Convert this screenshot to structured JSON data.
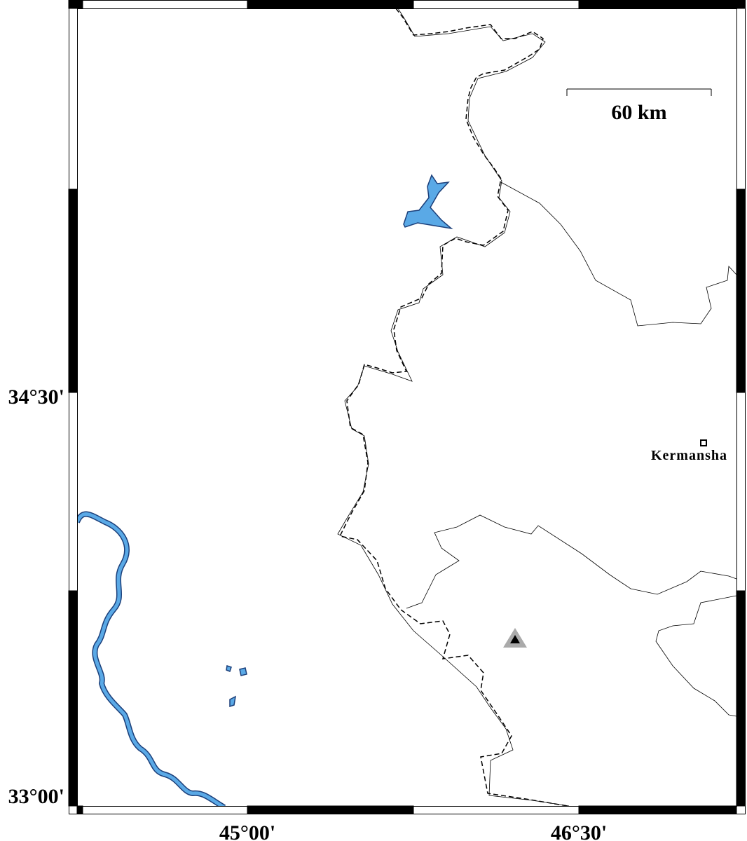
{
  "map": {
    "y_labels": [
      "34°30'",
      "33°00'"
    ],
    "x_labels": [
      "45°00'",
      "46°30'"
    ],
    "scale_bar": "60 km",
    "place": "Kermansha"
  }
}
